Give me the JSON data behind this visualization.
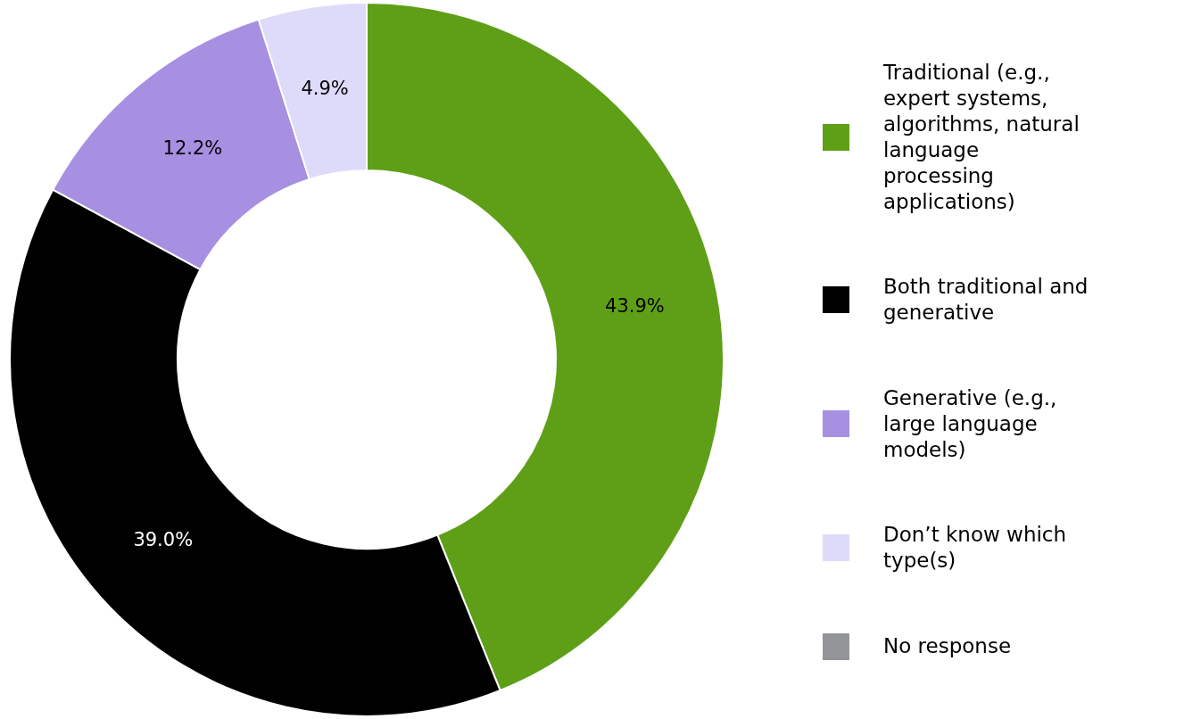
{
  "chart_data": {
    "type": "donut",
    "categories": [
      "Traditional (e.g., expert systems, algorithms, natural language processing applications)",
      "Both traditional and generative",
      "Generative (e.g., large language models)",
      "Don’t know which type(s)",
      "No response"
    ],
    "values": [
      43.9,
      39.0,
      12.2,
      4.9,
      0
    ],
    "colors": [
      "#5f9f17",
      "#000000",
      "#a78fe2",
      "#dedafa",
      "#939598"
    ],
    "value_labels": [
      "43.9%",
      "39.0%",
      "12.2%",
      "4.9%",
      null
    ],
    "legend": "right"
  }
}
